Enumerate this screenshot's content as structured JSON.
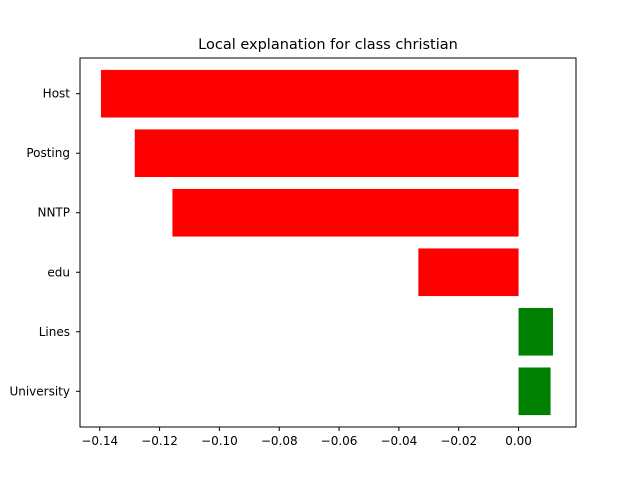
{
  "chart_data": {
    "type": "bar",
    "orientation": "horizontal",
    "title": "Local explanation for class christian",
    "xlabel": "",
    "ylabel": "",
    "categories": [
      "Host",
      "Posting",
      "NNTP",
      "edu",
      "Lines",
      "University"
    ],
    "values": [
      -0.1396,
      -0.1283,
      -0.1157,
      -0.0335,
      0.0115,
      0.0107
    ],
    "colors": {
      "negative": "#ff0000",
      "positive": "#008000"
    },
    "xlim": [
      -0.1466,
      0.0192
    ],
    "xticks": [
      -0.14,
      -0.12,
      -0.1,
      -0.08,
      -0.06,
      -0.04,
      -0.02,
      0.0
    ],
    "xtick_labels": [
      "−0.14",
      "−0.12",
      "−0.10",
      "−0.08",
      "−0.06",
      "−0.04",
      "−0.02",
      "0.00"
    ],
    "grid": false,
    "legend": "none"
  }
}
